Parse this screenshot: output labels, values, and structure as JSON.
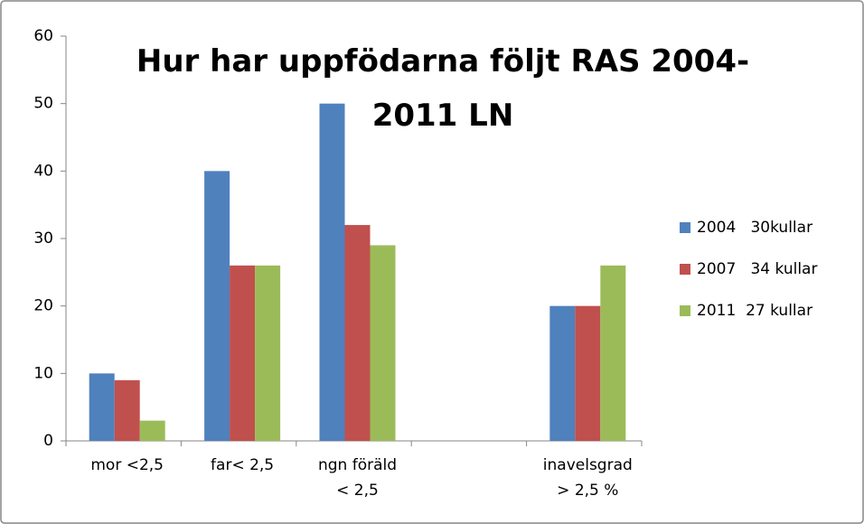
{
  "chart_data": {
    "type": "bar",
    "title": "Hur har uppfödarna följt RAS 2004-\n2011 LN",
    "categories": [
      "mor <2,5",
      "far< 2,5",
      "ngn föräld\n< 2,5",
      null,
      "inavelsgrad\n> 2,5 %"
    ],
    "series": [
      {
        "name": "2004   30kullar",
        "color": "#4f81bd",
        "values": [
          10,
          40,
          50,
          null,
          20
        ]
      },
      {
        "name": "2007   34 kullar",
        "color": "#c0504d",
        "values": [
          9,
          26,
          32,
          null,
          20
        ]
      },
      {
        "name": "2011  27 kullar",
        "color": "#9bbb59",
        "values": [
          3,
          26,
          29,
          null,
          26
        ]
      }
    ],
    "ylim": [
      0,
      60
    ],
    "yticks": [
      0,
      10,
      20,
      30,
      40,
      50,
      60
    ],
    "grid": false,
    "legend": "right"
  }
}
